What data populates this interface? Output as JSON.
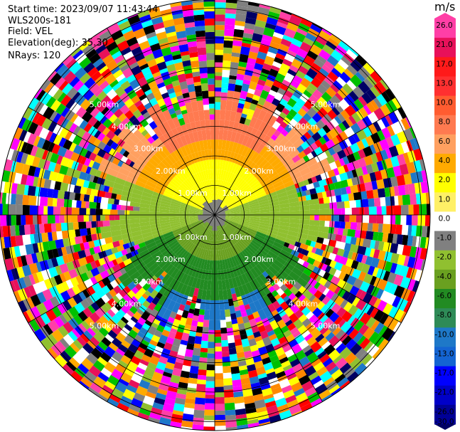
{
  "header": {
    "start_time": "Start time: 2023/09/07 11:43:44",
    "instrument": "WLS200s-181",
    "field": "Field: VEL",
    "elevation": "Elevation(deg): 35.30",
    "nrays": "NRays: 120"
  },
  "plot": {
    "ring_labels": [
      "1.00km",
      "2.00km",
      "3.00km",
      "4.00km",
      "5.00km"
    ]
  },
  "colorbar": {
    "unit": "m/s",
    "ticks": [
      "26.0",
      "21.0",
      "17.0",
      "13.0",
      "10.0",
      "8.0",
      "6.0",
      "4.0",
      "2.0",
      "1.0",
      "0.0",
      "-1.0",
      "-2.0",
      "-4.0",
      "-6.0",
      "-8.0",
      "-10.0",
      "-13.0",
      "-17.0",
      "-21.0",
      "-26.0",
      "-30.0"
    ],
    "colors": [
      "#ff3fa6",
      "#e8115a",
      "#ff1a1a",
      "#ff3030",
      "#ff5c30",
      "#ff7a50",
      "#ffa060",
      "#ffaa00",
      "#ffff00",
      "#fff066",
      "#ffffff",
      "#808080",
      "#90c030",
      "#6aa020",
      "#228b22",
      "#2e8b57",
      "#1e78c8",
      "#1464d2",
      "#0000ff",
      "#0000c8",
      "#000096",
      "#000064"
    ],
    "color_top": "#ff3fa6",
    "color_bottom": "#000064"
  }
}
